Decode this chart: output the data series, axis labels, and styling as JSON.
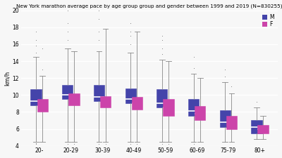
{
  "title": "New York marathon average pace by age group group and gender between 1999 and 2019 (N=830255)",
  "ylabel": "km/h",
  "age_groups_display": [
    "20-",
    "20-29",
    "30-39",
    "40-49",
    "50-59",
    "60-69",
    "75-79",
    "80+"
  ],
  "male_color": "#4444AA",
  "female_color": "#CC44AA",
  "background_color": "#f7f7f7",
  "ylim": [
    4,
    20
  ],
  "yticks": [
    4,
    6,
    8,
    10,
    12,
    14,
    16,
    18,
    20
  ],
  "male_boxes": [
    {
      "q1": 8.8,
      "median": 9.3,
      "q3": 10.7,
      "whislo": 4.5,
      "whishi": 14.5,
      "fliers": [
        4.2,
        4.3,
        15.0,
        15.8,
        16.5,
        17.5
      ]
    },
    {
      "q1": 9.5,
      "median": 10.0,
      "q3": 11.2,
      "whislo": 4.5,
      "whishi": 15.5,
      "fliers": [
        4.2,
        16.5,
        17.5,
        18.5,
        20.0
      ]
    },
    {
      "q1": 9.3,
      "median": 9.8,
      "q3": 11.2,
      "whislo": 4.5,
      "whishi": 15.2,
      "fliers": [
        4.2,
        16.5,
        17.5,
        19.0,
        20.0
      ]
    },
    {
      "q1": 9.0,
      "median": 9.5,
      "q3": 10.8,
      "whislo": 4.5,
      "whishi": 15.0,
      "fliers": [
        4.2,
        16.0,
        17.0,
        17.5,
        18.5
      ]
    },
    {
      "q1": 8.5,
      "median": 9.0,
      "q3": 10.7,
      "whislo": 4.5,
      "whishi": 14.2,
      "fliers": [
        4.2,
        14.8,
        15.5,
        16.5,
        17.0
      ]
    },
    {
      "q1": 7.5,
      "median": 8.1,
      "q3": 9.5,
      "whislo": 4.5,
      "whishi": 12.5,
      "fliers": [
        4.2,
        13.2,
        14.5
      ]
    },
    {
      "q1": 6.2,
      "median": 6.8,
      "q3": 8.2,
      "whislo": 4.5,
      "whishi": 11.5,
      "fliers": [
        12.2,
        13.0
      ]
    },
    {
      "q1": 5.5,
      "median": 6.2,
      "q3": 7.0,
      "whislo": 4.8,
      "whishi": 8.5,
      "fliers": [
        9.2
      ]
    }
  ],
  "female_boxes": [
    {
      "q1": 8.0,
      "median": 8.7,
      "q3": 9.5,
      "whislo": 4.5,
      "whishi": 12.3,
      "fliers": [
        13.0,
        15.5
      ]
    },
    {
      "q1": 8.8,
      "median": 9.3,
      "q3": 10.2,
      "whislo": 4.5,
      "whishi": 15.2,
      "fliers": [
        4.2
      ]
    },
    {
      "q1": 8.5,
      "median": 9.1,
      "q3": 9.9,
      "whislo": 4.5,
      "whishi": 17.8,
      "fliers": [
        4.2
      ]
    },
    {
      "q1": 8.3,
      "median": 9.0,
      "q3": 9.8,
      "whislo": 4.5,
      "whishi": 17.5,
      "fliers": [
        4.2
      ]
    },
    {
      "q1": 7.5,
      "median": 8.5,
      "q3": 9.5,
      "whislo": 4.5,
      "whishi": 14.0,
      "fliers": [
        4.2
      ]
    },
    {
      "q1": 7.0,
      "median": 7.8,
      "q3": 8.7,
      "whislo": 4.5,
      "whishi": 12.0,
      "fliers": []
    },
    {
      "q1": 6.0,
      "median": 6.8,
      "q3": 7.5,
      "whislo": 4.5,
      "whishi": 10.2,
      "fliers": [
        11.0
      ]
    },
    {
      "q1": 5.5,
      "median": 6.0,
      "q3": 6.5,
      "whislo": 4.8,
      "whishi": 7.5,
      "fliers": []
    }
  ]
}
